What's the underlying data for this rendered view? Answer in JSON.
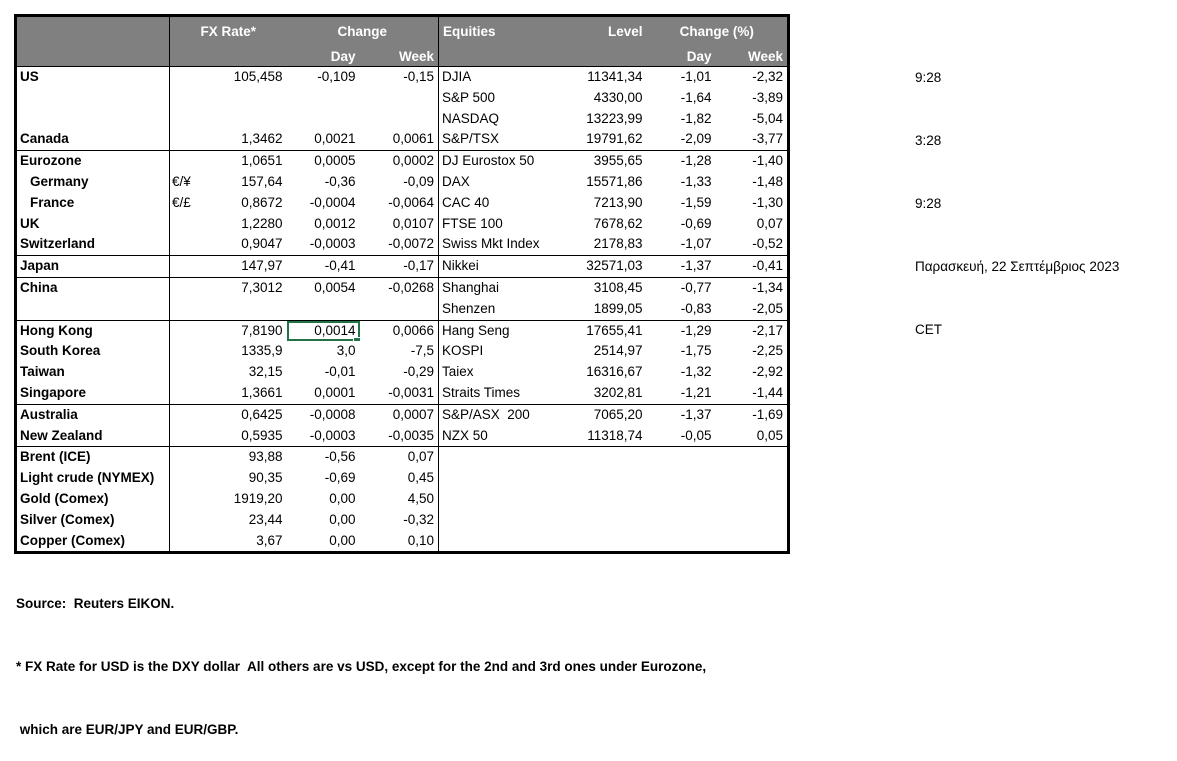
{
  "table": {
    "header": {
      "fx_rate": "FX Rate*",
      "change": "Change",
      "day": "Day",
      "week": "Week",
      "equities": "Equities",
      "level": "Level",
      "change_pct": "Change (%)"
    },
    "rows": [
      {
        "name": "US",
        "pair": "",
        "fx": "105,458",
        "day": "-0,109",
        "week": "-0,15",
        "eq": "DJIA",
        "level": "11341,34",
        "eq_day": "-1,01",
        "eq_week": "-2,32"
      },
      {
        "name": "",
        "pair": "",
        "fx": "",
        "day": "",
        "week": "",
        "eq": "S&P 500",
        "level": "4330,00",
        "eq_day": "-1,64",
        "eq_week": "-3,89"
      },
      {
        "name": "",
        "pair": "",
        "fx": "",
        "day": "",
        "week": "",
        "eq": "NASDAQ",
        "level": "13223,99",
        "eq_day": "-1,82",
        "eq_week": "-5,04"
      },
      {
        "name": "Canada",
        "pair": "",
        "fx": "1,3462",
        "day": "0,0021",
        "week": "0,0061",
        "eq": "S&P/TSX",
        "level": "19791,62",
        "eq_day": "-2,09",
        "eq_week": "-3,77"
      },
      {
        "name": "Eurozone",
        "sep": true,
        "pair": "",
        "fx": "1,0651",
        "day": "0,0005",
        "week": "0,0002",
        "eq": "DJ Eurostox 50",
        "level": "3955,65",
        "eq_day": "-1,28",
        "eq_week": "-1,40"
      },
      {
        "name": "Germany",
        "indent": true,
        "pair": "€/¥",
        "fx": "157,64",
        "day": "-0,36",
        "week": "-0,09",
        "eq": "DAX",
        "level": "15571,86",
        "eq_day": "-1,33",
        "eq_week": "-1,48"
      },
      {
        "name": "France",
        "indent": true,
        "pair": "€/£",
        "fx": "0,8672",
        "day": "-0,0004",
        "week": "-0,0064",
        "eq": "CAC 40",
        "level": "7213,90",
        "eq_day": "-1,59",
        "eq_week": "-1,30"
      },
      {
        "name": "UK",
        "pair": "",
        "fx": "1,2280",
        "day": "0,0012",
        "week": "0,0107",
        "eq": "FTSE 100",
        "level": "7678,62",
        "eq_day": "-0,69",
        "eq_week": "0,07"
      },
      {
        "name": "Switzerland",
        "pair": "",
        "fx": "0,9047",
        "day": "-0,0003",
        "week": "-0,0072",
        "eq": "Swiss Mkt Index",
        "level": "2178,83",
        "eq_day": "-1,07",
        "eq_week": "-0,52"
      },
      {
        "name": "Japan",
        "sep": true,
        "pair": "",
        "fx": "147,97",
        "day": "-0,41",
        "week": "-0,17",
        "eq": "Nikkei",
        "level": "32571,03",
        "eq_day": "-1,37",
        "eq_week": "-0,41"
      },
      {
        "name": "China",
        "sep": true,
        "pair": "",
        "fx": "7,3012",
        "day": "0,0054",
        "week": "-0,0268",
        "eq": "Shanghai",
        "level": "3108,45",
        "eq_day": "-0,77",
        "eq_week": "-1,34"
      },
      {
        "name": "",
        "pair": "",
        "fx": "",
        "day": "",
        "week": "",
        "eq": "Shenzen",
        "level": "1899,05",
        "eq_day": "-0,83",
        "eq_week": "-2,05"
      },
      {
        "name": "Hong Kong",
        "sep": true,
        "sel": true,
        "pair": "",
        "fx": "7,8190",
        "day": "0,0014",
        "week": "0,0066",
        "eq": "Hang Seng",
        "level": "17655,41",
        "eq_day": "-1,29",
        "eq_week": "-2,17"
      },
      {
        "name": "South Korea",
        "pair": "",
        "fx": "1335,9",
        "day": "3,0",
        "week": "-7,5",
        "eq": "KOSPI",
        "level": "2514,97",
        "eq_day": "-1,75",
        "eq_week": "-2,25"
      },
      {
        "name": "Taiwan",
        "pair": "",
        "fx": "32,15",
        "day": "-0,01",
        "week": "-0,29",
        "eq": "Taiex",
        "level": "16316,67",
        "eq_day": "-1,32",
        "eq_week": "-2,92"
      },
      {
        "name": "Singapore",
        "pair": "",
        "fx": "1,3661",
        "day": "0,0001",
        "week": "-0,0031",
        "eq": "Straits Times",
        "level": "3202,81",
        "eq_day": "-1,21",
        "eq_week": "-1,44"
      },
      {
        "name": "Australia",
        "sep": true,
        "pair": "",
        "fx": "0,6425",
        "day": "-0,0008",
        "week": "0,0007",
        "eq": "S&P/ASX  200",
        "level": "7065,20",
        "eq_day": "-1,37",
        "eq_week": "-1,69"
      },
      {
        "name": "New Zealand",
        "pair": "",
        "fx": "0,5935",
        "day": "-0,0003",
        "week": "-0,0035",
        "eq": "NZX 50",
        "level": "11318,74",
        "eq_day": "-0,05",
        "eq_week": "0,05"
      },
      {
        "name": "Brent (ICE)",
        "sep": true,
        "pair": "",
        "fx": "93,88",
        "day": "-0,56",
        "week": "0,07",
        "eq": "",
        "level": "",
        "eq_day": "",
        "eq_week": ""
      },
      {
        "name": "Light crude (NYMEX)",
        "pair": "",
        "fx": "90,35",
        "day": "-0,69",
        "week": "0,45",
        "eq": "",
        "level": "",
        "eq_day": "",
        "eq_week": ""
      },
      {
        "name": "Gold (Comex)",
        "pair": "",
        "fx": "1919,20",
        "day": "0,00",
        "week": "4,50",
        "eq": "",
        "level": "",
        "eq_day": "",
        "eq_week": ""
      },
      {
        "name": "Silver (Comex)",
        "pair": "",
        "fx": "23,44",
        "day": "0,00",
        "week": "-0,32",
        "eq": "",
        "level": "",
        "eq_day": "",
        "eq_week": ""
      },
      {
        "name": "Copper (Comex)",
        "pair": "",
        "fx": "3,67",
        "day": "0,00",
        "week": "0,10",
        "eq": "",
        "level": "",
        "eq_day": "",
        "eq_week": ""
      }
    ]
  },
  "selection": {
    "row": "Hong Kong",
    "column": "Day",
    "value": "0,0014",
    "color": "#217346"
  },
  "side_panel": {
    "lines": [
      "9:28",
      "3:28",
      "9:28",
      "Παρασκευή, 22 Σεπτέμβριος 2023",
      "CET"
    ]
  },
  "footer": {
    "source": "Source:  Reuters EIKON.",
    "note_line1": "* FX Rate for USD is the DXY dollar  All others are vs USD, except for the 2nd and 3rd ones under Eurozone,",
    "note_line2": " which are EUR/JPY and EUR/GBP."
  },
  "colors": {
    "header_bg": "#808080",
    "header_text": "#ffffff",
    "border": "#000000",
    "selection": "#217346"
  }
}
